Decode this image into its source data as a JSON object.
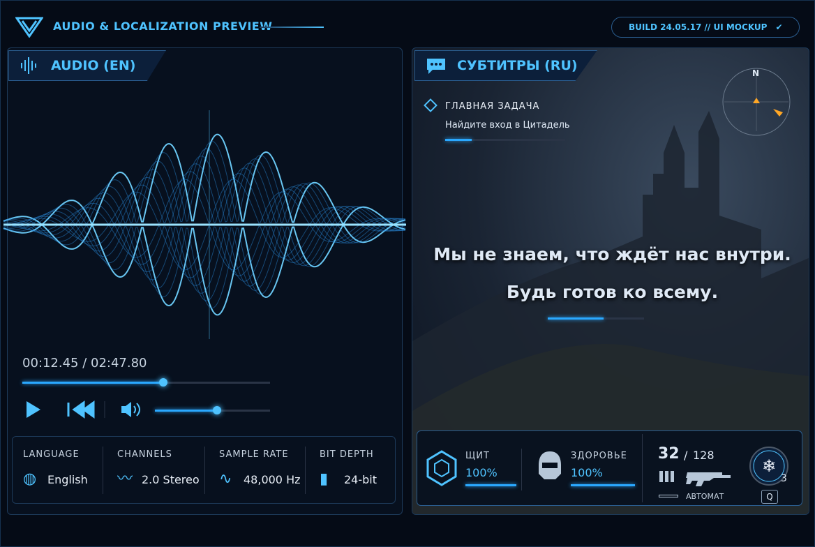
{
  "header": {
    "title": "AUDIO & LOCALIZATION PREVIEW",
    "build": "BUILD 24.05.17 // UI MOCKUP"
  },
  "audio": {
    "title": "AUDIO (EN)",
    "time": "00:12.45 / 02:47.80",
    "progress": 57,
    "volume": 54,
    "stats": [
      {
        "label": "LANGUAGE",
        "value": "English"
      },
      {
        "label": "CHANNELS",
        "value": "2.0 Stereo"
      },
      {
        "label": "SAMPLE RATE",
        "value": "48,000 Hz"
      },
      {
        "label": "BIT DEPTH",
        "value": "24-bit"
      }
    ]
  },
  "subtitles": {
    "title": "СУБТИТРЫ (RU)",
    "compass": "N",
    "objective": {
      "label": "ГЛАВНАЯ ЗАДАЧА",
      "text": "Найдите вход в Цитадель",
      "progress": 22
    },
    "lines": [
      "Мы не знаем, что ждёт нас внутри.",
      "Будь готов ко всему."
    ],
    "progress": 58
  },
  "hud": {
    "shield": {
      "label": "ЩИТ",
      "value": 100,
      "value_label": "100%"
    },
    "health": {
      "label": "ЗДОРОВЬЕ",
      "value": 100,
      "value_label": "100%"
    },
    "ammo": {
      "current": "32",
      "separator": "/",
      "reserve": "128"
    },
    "weapon": "АВТОМАТ",
    "ability": {
      "count": "3",
      "key": "Q"
    }
  }
}
